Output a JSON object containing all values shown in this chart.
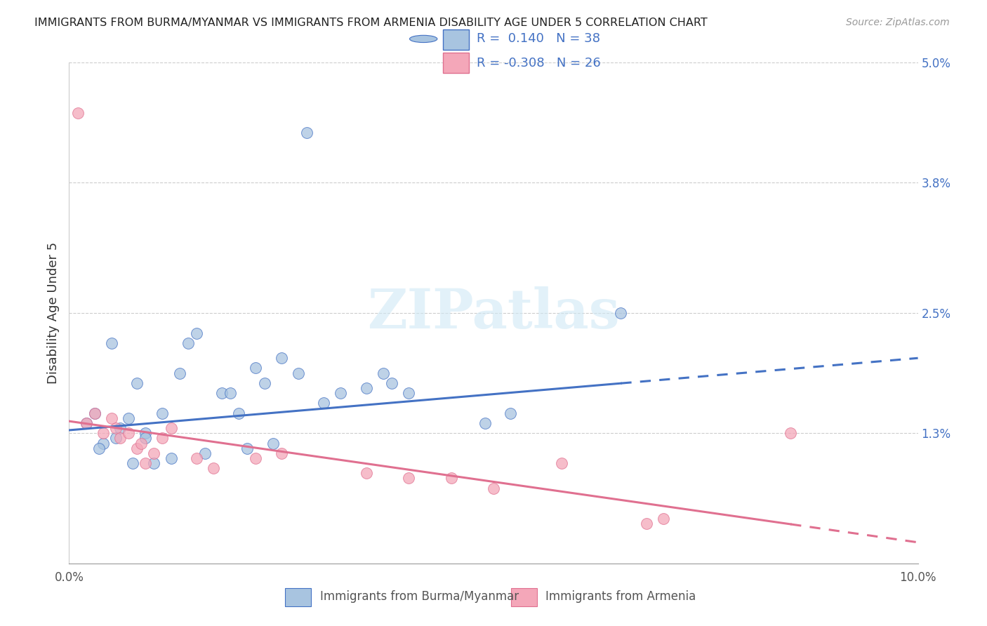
{
  "title": "IMMIGRANTS FROM BURMA/MYANMAR VS IMMIGRANTS FROM ARMENIA DISABILITY AGE UNDER 5 CORRELATION CHART",
  "source": "Source: ZipAtlas.com",
  "ylabel": "Disability Age Under 5",
  "legend_labels": [
    "Immigrants from Burma/Myanmar",
    "Immigrants from Armenia"
  ],
  "r_values": [
    0.14,
    -0.308
  ],
  "n_values": [
    38,
    26
  ],
  "blue_color": "#a8c4e0",
  "pink_color": "#f4a7b9",
  "blue_line_color": "#4472c4",
  "pink_line_color": "#e07090",
  "right_yticks": [
    0.0,
    1.3,
    2.5,
    3.8,
    5.0
  ],
  "right_ytick_labels": [
    "",
    "1.3%",
    "2.5%",
    "3.8%",
    "5.0%"
  ],
  "xlim": [
    0.0,
    10.0
  ],
  "ylim": [
    0.0,
    5.0
  ],
  "blue_scatter_x": [
    2.8,
    0.5,
    0.3,
    0.7,
    0.9,
    0.4,
    0.6,
    0.8,
    1.3,
    1.4,
    0.2,
    0.35,
    0.55,
    0.75,
    1.0,
    1.1,
    1.5,
    1.8,
    2.2,
    2.5,
    2.0,
    1.9,
    3.5,
    3.8,
    2.3,
    2.7,
    3.2,
    3.7,
    4.0,
    4.9,
    5.2,
    6.5,
    2.4,
    2.1,
    1.6,
    3.0,
    1.2,
    0.9
  ],
  "blue_scatter_y": [
    4.3,
    2.2,
    1.5,
    1.45,
    1.3,
    1.2,
    1.35,
    1.8,
    1.9,
    2.2,
    1.4,
    1.15,
    1.25,
    1.0,
    1.0,
    1.5,
    2.3,
    1.7,
    1.95,
    2.05,
    1.5,
    1.7,
    1.75,
    1.8,
    1.8,
    1.9,
    1.7,
    1.9,
    1.7,
    1.4,
    1.5,
    2.5,
    1.2,
    1.15,
    1.1,
    1.6,
    1.05,
    1.25
  ],
  "pink_scatter_x": [
    0.1,
    0.2,
    0.3,
    0.4,
    0.5,
    0.55,
    0.6,
    0.7,
    0.8,
    0.85,
    0.9,
    1.0,
    1.1,
    1.2,
    1.5,
    1.7,
    2.2,
    2.5,
    3.5,
    4.5,
    5.0,
    5.8,
    7.0,
    8.5,
    4.0,
    6.8
  ],
  "pink_scatter_y": [
    4.5,
    1.4,
    1.5,
    1.3,
    1.45,
    1.35,
    1.25,
    1.3,
    1.15,
    1.2,
    1.0,
    1.1,
    1.25,
    1.35,
    1.05,
    0.95,
    1.05,
    1.1,
    0.9,
    0.85,
    0.75,
    1.0,
    0.45,
    1.3,
    0.85,
    0.4
  ],
  "blue_trend_start_x": 0.0,
  "blue_trend_end_solid_x": 6.5,
  "blue_trend_end_x": 10.0,
  "blue_trend_slope": 0.072,
  "blue_trend_intercept": 1.33,
  "pink_trend_slope": -0.121,
  "pink_trend_intercept": 1.42,
  "pink_solid_end_x": 8.5,
  "watermark_text": "ZIPatlas",
  "watermark_color": "#d0e8f5"
}
